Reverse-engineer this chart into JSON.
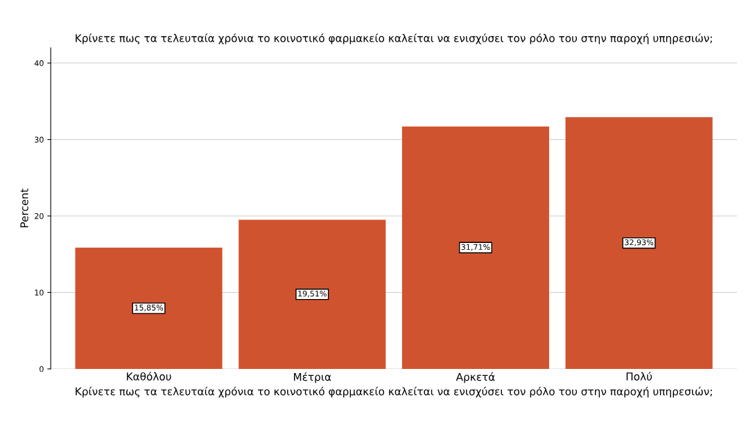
{
  "chart_data": {
    "type": "bar",
    "title": "Κρίνετε πως τα τελευταία χρόνια το κοινοτικό φαρμακείο καλείται να ενισχύσει τον ρόλο του στην παροχή υπηρεσιών;",
    "xlabel": "Κρίνετε πως τα τελευταία χρόνια το κοινοτικό φαρμακείο καλείται να ενισχύσει τον ρόλο του στην παροχή υπηρεσιών;",
    "ylabel": "Percent",
    "categories": [
      "Καθόλου",
      "Μέτρια",
      "Αρκετά",
      "Πολύ"
    ],
    "values": [
      15.85,
      19.51,
      31.71,
      32.93
    ],
    "value_labels": [
      "15,85%",
      "19,51%",
      "31,71%",
      "32,93%"
    ],
    "color": "#d0532f",
    "ylim": [
      0,
      42
    ],
    "yticks": [
      0,
      10,
      20,
      30,
      40
    ],
    "grid": "y"
  }
}
